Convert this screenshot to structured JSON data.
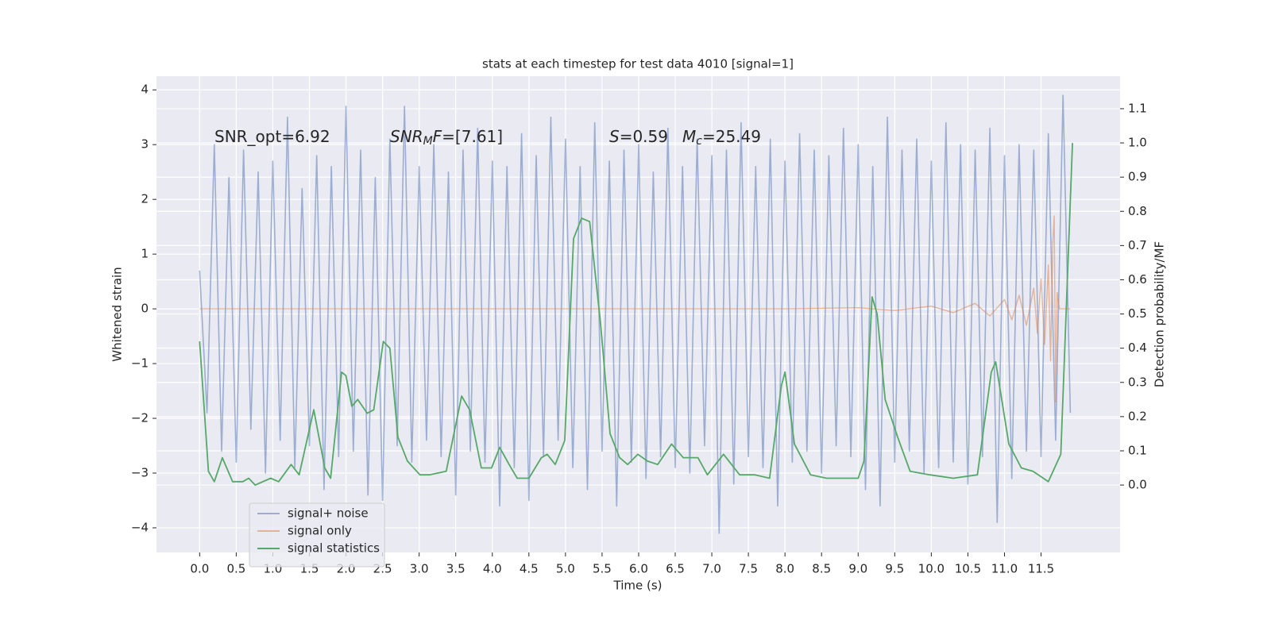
{
  "chart_data": {
    "type": "line",
    "title": "stats at each timestep for test data 4010 [signal=1]",
    "xlabel": "Time (s)",
    "ylabel": "Whitened strain",
    "y2label": "Detection probability/MF",
    "annotations": [
      {
        "parts": [
          "SNR_opt=6.92"
        ]
      },
      {
        "parts": [
          "SNR",
          "M",
          "F",
          "=[7.61]"
        ]
      },
      {
        "parts": [
          "S",
          "=0.59"
        ]
      },
      {
        "parts": [
          "M",
          "c",
          "=25.49"
        ]
      }
    ],
    "xlim": [
      -0.59,
      12.58
    ],
    "ylim": [
      -4.45,
      4.25
    ],
    "y2lim": [
      -0.197,
      1.195
    ],
    "xticks": [
      {
        "value": 0,
        "label": "0.0"
      },
      0.5,
      {
        "value": 1,
        "label": "1.0"
      },
      1.5,
      {
        "value": 2,
        "label": "2.0"
      },
      2.5,
      {
        "value": 3,
        "label": "3.0"
      },
      3.5,
      {
        "value": 4,
        "label": "4.0"
      },
      4.5,
      {
        "value": 5,
        "label": "5.0"
      },
      5.5,
      {
        "value": 6,
        "label": "6.0"
      },
      6.5,
      {
        "value": 7,
        "label": "7.0"
      },
      7.5,
      {
        "value": 8,
        "label": "8.0"
      },
      8.5,
      {
        "value": 9,
        "label": "9.0"
      },
      9.5,
      {
        "value": 10,
        "label": "10.0"
      },
      10.5,
      {
        "value": 11,
        "label": "11.0"
      },
      11.5
    ],
    "yticks": [
      {
        "value": -4,
        "label": "−4"
      },
      {
        "value": -3,
        "label": "−3"
      },
      {
        "value": -2,
        "label": "−2"
      },
      {
        "value": -1,
        "label": "−1"
      },
      0,
      1,
      2,
      3,
      4
    ],
    "y2ticks": [
      {
        "value": 0,
        "label": "0.0"
      },
      0.1,
      0.2,
      0.3,
      0.4,
      0.5,
      0.6,
      0.7,
      0.8,
      0.9,
      {
        "value": 1,
        "label": "1.0"
      },
      1.1
    ],
    "grid": true,
    "legend": "lower left",
    "series": [
      {
        "name": "signal+ noise",
        "color": "#4c72b0",
        "axis": "y",
        "x": [
          0.0,
          0.1,
          0.2,
          0.3,
          0.4,
          0.5,
          0.6,
          0.7,
          0.8,
          0.9,
          1.0,
          1.1,
          1.2,
          1.3,
          1.4,
          1.5,
          1.6,
          1.7,
          1.8,
          1.9,
          2.0,
          2.1,
          2.2,
          2.3,
          2.4,
          2.5,
          2.6,
          2.7,
          2.8,
          2.9,
          3.0,
          3.1,
          3.2,
          3.3,
          3.4,
          3.5,
          3.6,
          3.7,
          3.8,
          3.9,
          4.0,
          4.1,
          4.2,
          4.3,
          4.4,
          4.5,
          4.6,
          4.7,
          4.8,
          4.9,
          5.0,
          5.1,
          5.2,
          5.3,
          5.4,
          5.5,
          5.6,
          5.7,
          5.8,
          5.9,
          6.0,
          6.1,
          6.2,
          6.3,
          6.4,
          6.5,
          6.6,
          6.7,
          6.8,
          6.9,
          7.0,
          7.1,
          7.2,
          7.3,
          7.4,
          7.5,
          7.6,
          7.7,
          7.8,
          7.9,
          8.0,
          8.1,
          8.2,
          8.3,
          8.4,
          8.5,
          8.6,
          8.7,
          8.8,
          8.9,
          9.0,
          9.1,
          9.2,
          9.3,
          9.4,
          9.5,
          9.6,
          9.7,
          9.8,
          9.9,
          10.0,
          10.1,
          10.2,
          10.3,
          10.4,
          10.5,
          10.6,
          10.7,
          10.8,
          10.9,
          11.0,
          11.1,
          11.2,
          11.3,
          11.4,
          11.5,
          11.6,
          11.7,
          11.8,
          11.9
        ],
        "values": [
          0.7,
          -1.9,
          3.0,
          -2.6,
          2.4,
          -2.8,
          2.9,
          -2.2,
          2.5,
          -3.0,
          2.7,
          -2.4,
          3.5,
          -2.9,
          2.2,
          -2.5,
          2.8,
          -3.3,
          2.6,
          -2.7,
          3.7,
          -2.6,
          2.9,
          -3.4,
          2.4,
          -3.5,
          3.1,
          -2.5,
          3.7,
          -2.8,
          2.6,
          -2.4,
          3.0,
          -2.7,
          2.5,
          -3.4,
          2.9,
          -2.6,
          3.3,
          -2.8,
          2.7,
          -3.6,
          2.6,
          -2.9,
          3.2,
          -3.5,
          2.8,
          -2.7,
          3.5,
          -2.4,
          3.1,
          -2.9,
          2.6,
          -3.3,
          3.4,
          -2.6,
          2.7,
          -3.6,
          2.9,
          -2.8,
          3.0,
          -3.1,
          2.5,
          -2.7,
          3.3,
          -2.9,
          2.6,
          -3.0,
          3.1,
          -2.5,
          2.8,
          -4.1,
          2.9,
          -3.2,
          3.4,
          -2.7,
          2.6,
          -2.9,
          3.1,
          -3.6,
          2.7,
          -2.8,
          3.2,
          -2.6,
          2.9,
          -3.0,
          2.8,
          -2.5,
          3.3,
          -2.7,
          3.0,
          -3.3,
          2.6,
          -3.6,
          3.5,
          -2.8,
          2.9,
          -2.6,
          3.1,
          -3.0,
          2.7,
          -2.9,
          3.4,
          -2.8,
          3.0,
          -3.2,
          2.9,
          -2.7,
          3.3,
          -3.9,
          2.8,
          -3.1,
          3.0,
          -2.6,
          2.9,
          -2.7,
          3.2,
          -2.4,
          3.9,
          -1.9
        ]
      },
      {
        "name": "signal only",
        "color": "#dd8452",
        "axis": "y",
        "x": [
          0,
          8,
          9,
          9.5,
          10,
          10.3,
          10.6,
          10.8,
          11.0,
          11.1,
          11.2,
          11.3,
          11.4,
          11.45,
          11.5,
          11.55,
          11.6,
          11.63,
          11.66,
          11.68,
          11.7,
          11.72,
          11.75,
          11.9
        ],
        "values": [
          0,
          0,
          0.02,
          -0.03,
          0.05,
          -0.07,
          0.1,
          -0.13,
          0.17,
          -0.2,
          0.25,
          -0.3,
          0.38,
          -0.45,
          0.55,
          -0.65,
          0.8,
          -0.95,
          1.2,
          1.7,
          -1.7,
          0.3,
          0,
          0
        ]
      },
      {
        "name": "signal statistics",
        "color": "#55a868",
        "axis": "y2",
        "x": [
          0.0,
          0.12,
          0.2,
          0.31,
          0.45,
          0.59,
          0.67,
          0.76,
          0.97,
          1.08,
          1.25,
          1.36,
          1.56,
          1.71,
          1.79,
          1.94,
          2.0,
          2.08,
          2.16,
          2.29,
          2.38,
          2.51,
          2.6,
          2.71,
          2.84,
          3.01,
          3.14,
          3.37,
          3.58,
          3.69,
          3.85,
          3.99,
          4.1,
          4.23,
          4.34,
          4.5,
          4.67,
          4.75,
          4.86,
          4.99,
          5.11,
          5.22,
          5.33,
          5.48,
          5.61,
          5.74,
          5.85,
          5.99,
          6.12,
          6.26,
          6.45,
          6.61,
          6.81,
          6.94,
          7.16,
          7.38,
          7.59,
          7.79,
          7.95,
          8.0,
          8.13,
          8.35,
          8.57,
          9.0,
          9.08,
          9.19,
          9.26,
          9.37,
          9.54,
          9.71,
          9.98,
          10.3,
          10.63,
          10.82,
          10.88,
          11.06,
          11.23,
          11.39,
          11.6,
          11.77,
          11.93
        ],
        "values": [
          0.42,
          0.04,
          0.01,
          0.08,
          0.01,
          0.01,
          0.02,
          0.0,
          0.02,
          0.01,
          0.06,
          0.03,
          0.22,
          0.05,
          0.02,
          0.33,
          0.32,
          0.23,
          0.25,
          0.21,
          0.22,
          0.42,
          0.4,
          0.14,
          0.07,
          0.03,
          0.03,
          0.04,
          0.26,
          0.22,
          0.05,
          0.05,
          0.11,
          0.06,
          0.02,
          0.02,
          0.08,
          0.09,
          0.06,
          0.13,
          0.72,
          0.78,
          0.77,
          0.47,
          0.15,
          0.08,
          0.06,
          0.09,
          0.07,
          0.06,
          0.12,
          0.08,
          0.08,
          0.03,
          0.09,
          0.03,
          0.03,
          0.02,
          0.29,
          0.33,
          0.12,
          0.03,
          0.02,
          0.02,
          0.07,
          0.55,
          0.5,
          0.25,
          0.14,
          0.04,
          0.03,
          0.02,
          0.03,
          0.33,
          0.36,
          0.12,
          0.05,
          0.04,
          0.01,
          0.09,
          1.0
        ]
      }
    ]
  }
}
